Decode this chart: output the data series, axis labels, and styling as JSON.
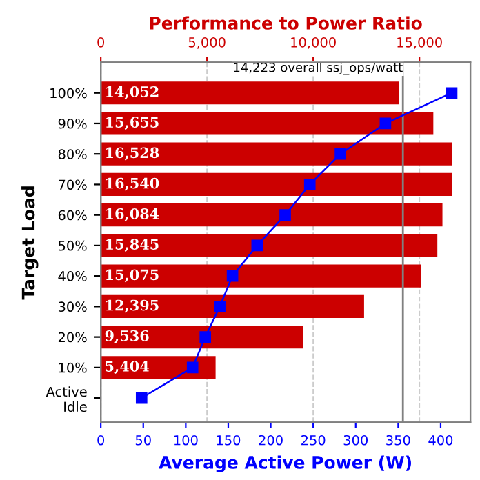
{
  "chart_data": {
    "type": "bar",
    "orientation": "horizontal",
    "x2label": "Performance to Power Ratio",
    "xlabel": "Average Active Power (W)",
    "ylabel": "Target Load",
    "categories": [
      "100%",
      "90%",
      "80%",
      "70%",
      "60%",
      "50%",
      "40%",
      "30%",
      "20%",
      "10%",
      "Active\nIdle"
    ],
    "series": [
      {
        "axis": "x2",
        "color": "#cc0000",
        "values": [
          14052,
          15655,
          16528,
          16540,
          16084,
          15845,
          15075,
          12395,
          9536,
          5404,
          null
        ],
        "value_labels": [
          "14,052",
          "15,655",
          "16,528",
          "16,540",
          "16,084",
          "15,845",
          "15,075",
          "12,395",
          "9,536",
          "5,404",
          null
        ]
      },
      {
        "type": "line",
        "color": "#0000ff",
        "marker": "square",
        "values": [
          413,
          335,
          282,
          246,
          217,
          184,
          155,
          140,
          123,
          108,
          48
        ]
      }
    ],
    "xlim": [
      0,
      435
    ],
    "xticks": [
      0,
      50,
      100,
      150,
      200,
      250,
      300,
      350,
      400
    ],
    "x2lim": [
      0,
      17400
    ],
    "x2ticks": [
      0,
      {
        "value": 5000,
        "label": "5,000"
      },
      {
        "value": 10000,
        "label": "10,000"
      },
      {
        "value": 15000,
        "label": "15,000"
      }
    ],
    "ref_lines": [
      {
        "axis": "x2",
        "value": 14223,
        "label": "14,223 overall ssj_ops/watt",
        "color": "#808080"
      }
    ],
    "grid": "x2"
  }
}
